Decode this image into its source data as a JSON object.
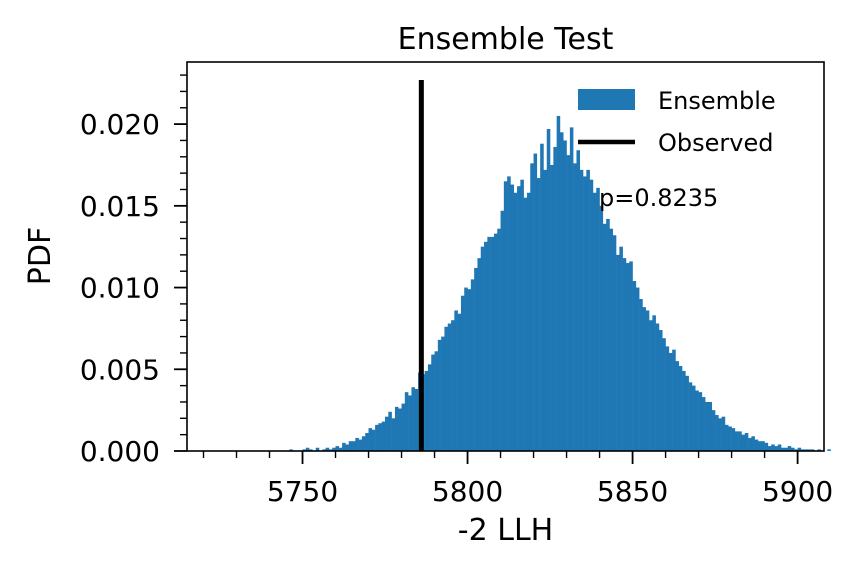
{
  "chart_data": {
    "type": "histogram",
    "title": "Ensemble Test",
    "xlabel": "-2 LLH",
    "ylabel": "PDF",
    "xlim": [
      5715,
      5908
    ],
    "ylim": [
      0,
      0.0238
    ],
    "x_ticks": [
      5750,
      5800,
      5850,
      5900
    ],
    "y_ticks": [
      0.0,
      0.005,
      0.01,
      0.015,
      0.02
    ],
    "x_tick_labels": [
      "5750",
      "5800",
      "5850",
      "5900"
    ],
    "y_tick_labels": [
      "0.000",
      "0.005",
      "0.010",
      "0.015",
      "0.020"
    ],
    "grid": false,
    "legend_position": "top-right",
    "series": [
      {
        "name": "Ensemble",
        "kind": "histogram",
        "color": "#1f77b4",
        "bin_start": 5730,
        "bin_width": 1,
        "values": [
          0.0,
          0.0,
          0.0,
          0.0,
          0.0,
          0.0,
          0.0,
          0.0,
          0.0,
          0.0,
          0.0,
          0.0,
          0.0,
          0.0,
          0.0,
          0.0,
          0.0001,
          0.0,
          0.0,
          0.0,
          0.0001,
          0.0002,
          0.0001,
          0.0,
          0.0002,
          0.0,
          0.0001,
          0.0002,
          0.0001,
          0.0002,
          0.0003,
          0.0002,
          0.0005,
          0.0004,
          0.0006,
          0.0006,
          0.0008,
          0.0007,
          0.0009,
          0.0011,
          0.0014,
          0.0013,
          0.0016,
          0.0017,
          0.0018,
          0.0021,
          0.0024,
          0.002,
          0.0027,
          0.0026,
          0.0029,
          0.0036,
          0.0034,
          0.0039,
          0.0038,
          0.0048,
          0.0047,
          0.0049,
          0.0053,
          0.0059,
          0.0061,
          0.0068,
          0.007,
          0.0076,
          0.0078,
          0.008,
          0.0086,
          0.0084,
          0.0095,
          0.01,
          0.0099,
          0.0105,
          0.0112,
          0.0118,
          0.0125,
          0.0128,
          0.0131,
          0.0131,
          0.0133,
          0.0136,
          0.0147,
          0.0165,
          0.0168,
          0.0163,
          0.0158,
          0.0162,
          0.0166,
          0.0155,
          0.0158,
          0.0176,
          0.0182,
          0.0167,
          0.0188,
          0.0172,
          0.0197,
          0.0175,
          0.0186,
          0.0205,
          0.0195,
          0.019,
          0.0181,
          0.0198,
          0.0176,
          0.0184,
          0.0172,
          0.0168,
          0.0172,
          0.0166,
          0.0158,
          0.0161,
          0.015,
          0.0139,
          0.0142,
          0.0136,
          0.0132,
          0.012,
          0.0125,
          0.0118,
          0.0115,
          0.0116,
          0.0104,
          0.01,
          0.0093,
          0.0088,
          0.0086,
          0.008,
          0.0083,
          0.0078,
          0.0074,
          0.0069,
          0.0064,
          0.006,
          0.0062,
          0.0055,
          0.0052,
          0.0049,
          0.0046,
          0.0042,
          0.004,
          0.0037,
          0.0036,
          0.0033,
          0.003,
          0.003,
          0.0025,
          0.0022,
          0.002,
          0.0021,
          0.0016,
          0.0015,
          0.0014,
          0.0012,
          0.0012,
          0.001,
          0.0011,
          0.0008,
          0.0009,
          0.0007,
          0.0006,
          0.0006,
          0.0005,
          0.0003,
          0.0004,
          0.0003,
          0.0004,
          0.0002,
          0.0002,
          0.0003,
          0.0002,
          0.0001,
          0.0002,
          0.0001,
          0.0001,
          0.0001,
          0.0001,
          0.0,
          0.0001,
          0.0,
          0.0,
          0.0001,
          0.0,
          0.0,
          0.0,
          0.0,
          0.0,
          0.0,
          0.0,
          0.0,
          0.0,
          0.0
        ]
      },
      {
        "name": "Observed",
        "kind": "vline",
        "color": "#000000",
        "x": 5786
      }
    ],
    "annotations": [
      {
        "text": "p=0.8235"
      }
    ]
  }
}
